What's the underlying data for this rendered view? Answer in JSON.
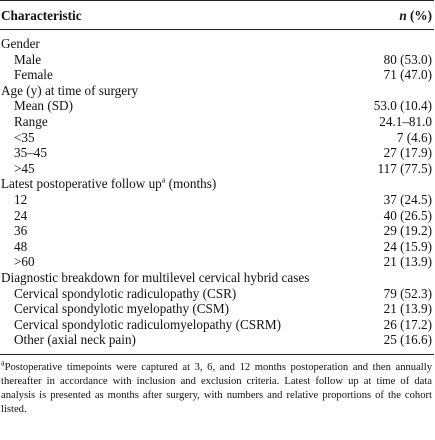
{
  "table": {
    "header": {
      "characteristic": "Characteristic",
      "n_label": "n",
      "pct_label": " (%)"
    },
    "gender": {
      "heading": "Gender",
      "rows": [
        {
          "label": "Male",
          "value": "80 (53.0)"
        },
        {
          "label": "Female",
          "value": "71 (47.0)"
        }
      ]
    },
    "age": {
      "heading": "Age (y) at time of surgery",
      "rows": [
        {
          "label": "Mean (SD)",
          "value": "53.0 (10.4)"
        },
        {
          "label": "Range",
          "value": "24.1–81.0"
        },
        {
          "label": "<35",
          "value": "7 (4.6)"
        },
        {
          "label": "35–45",
          "value": "27 (17.9)"
        },
        {
          "label": ">45",
          "value": "117 (77.5)"
        }
      ]
    },
    "followup": {
      "heading": "Latest postoperative follow up",
      "heading_sup": "a",
      "heading_suffix": " (months)",
      "rows": [
        {
          "label": "12",
          "value": "37 (24.5)"
        },
        {
          "label": "24",
          "value": "40 (26.5)"
        },
        {
          "label": "36",
          "value": "29 (19.2)"
        },
        {
          "label": "48",
          "value": "24 (15.9)"
        },
        {
          "label": ">60",
          "value": "21 (13.9)"
        }
      ]
    },
    "diagnosis": {
      "heading": "Diagnostic breakdown for multilevel cervical hybrid cases",
      "rows": [
        {
          "label": "Cervical spondylotic radiculopathy (CSR)",
          "value": "79 (52.3)"
        },
        {
          "label": "Cervical spondylotic myelopathy (CSM)",
          "value": "21 (13.9)"
        },
        {
          "label": "Cervical spondylotic radiculomyelopathy (CSRM)",
          "value": "26 (17.2)"
        },
        {
          "label": "Other (axial neck pain)",
          "value": "25 (16.6)"
        }
      ]
    }
  },
  "footnote": {
    "marker": "a",
    "text": "Postoperative timepoints were captured at 3, 6, and 12 months postoperation and then annually thereafter in accordance with inclusion and exclusion criteria. Latest follow up at time of data analysis is presented as months after surgery, with numbers and relative proportions of the cohort listed."
  }
}
